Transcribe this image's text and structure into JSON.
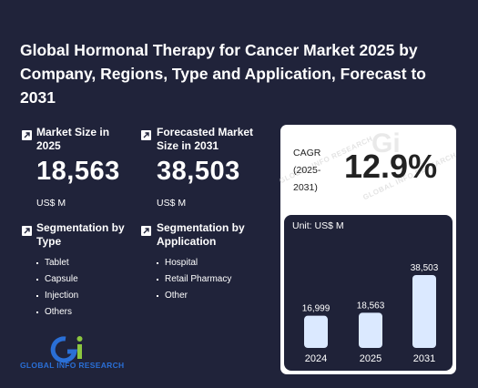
{
  "title": "Global Hormonal Therapy for Cancer Market 2025 by Company, Regions, Type and Application, Forecast to 2031",
  "market_size": {
    "label": "Market Size in 2025",
    "value": "18,563",
    "unit": "US$ M"
  },
  "forecast": {
    "label": "Forecasted Market Size in 2031",
    "value": "38,503",
    "unit": "US$ M"
  },
  "segmentation_type": {
    "label": "Segmentation by Type",
    "items": [
      "Tablet",
      "Capsule",
      "Injection",
      "Others"
    ]
  },
  "segmentation_application": {
    "label": "Segmentation by Application",
    "items": [
      "Hospital",
      "Retail Pharmacy",
      "Other"
    ]
  },
  "cagr": {
    "label_line1": "CAGR",
    "label_line2": "(2025-",
    "label_line3": "2031)",
    "value": "12.9%"
  },
  "watermark": "GLOBAL INFO RESEARCH",
  "logo": {
    "mark": "Gi",
    "text": "GLOBAL INFO RESEARCH"
  },
  "colors": {
    "background": "#20233a",
    "card": "#ffffff",
    "bar": "#dbe9ff",
    "logo_blue": "#2a6fd6",
    "logo_green": "#8cc63f"
  },
  "chart_data": {
    "type": "bar",
    "unit_label": "Unit: US$ M",
    "categories": [
      "2024",
      "2025",
      "2031"
    ],
    "values": [
      16999,
      18563,
      38503
    ],
    "value_labels": [
      "16,999",
      "18,563",
      "38,503"
    ]
  }
}
